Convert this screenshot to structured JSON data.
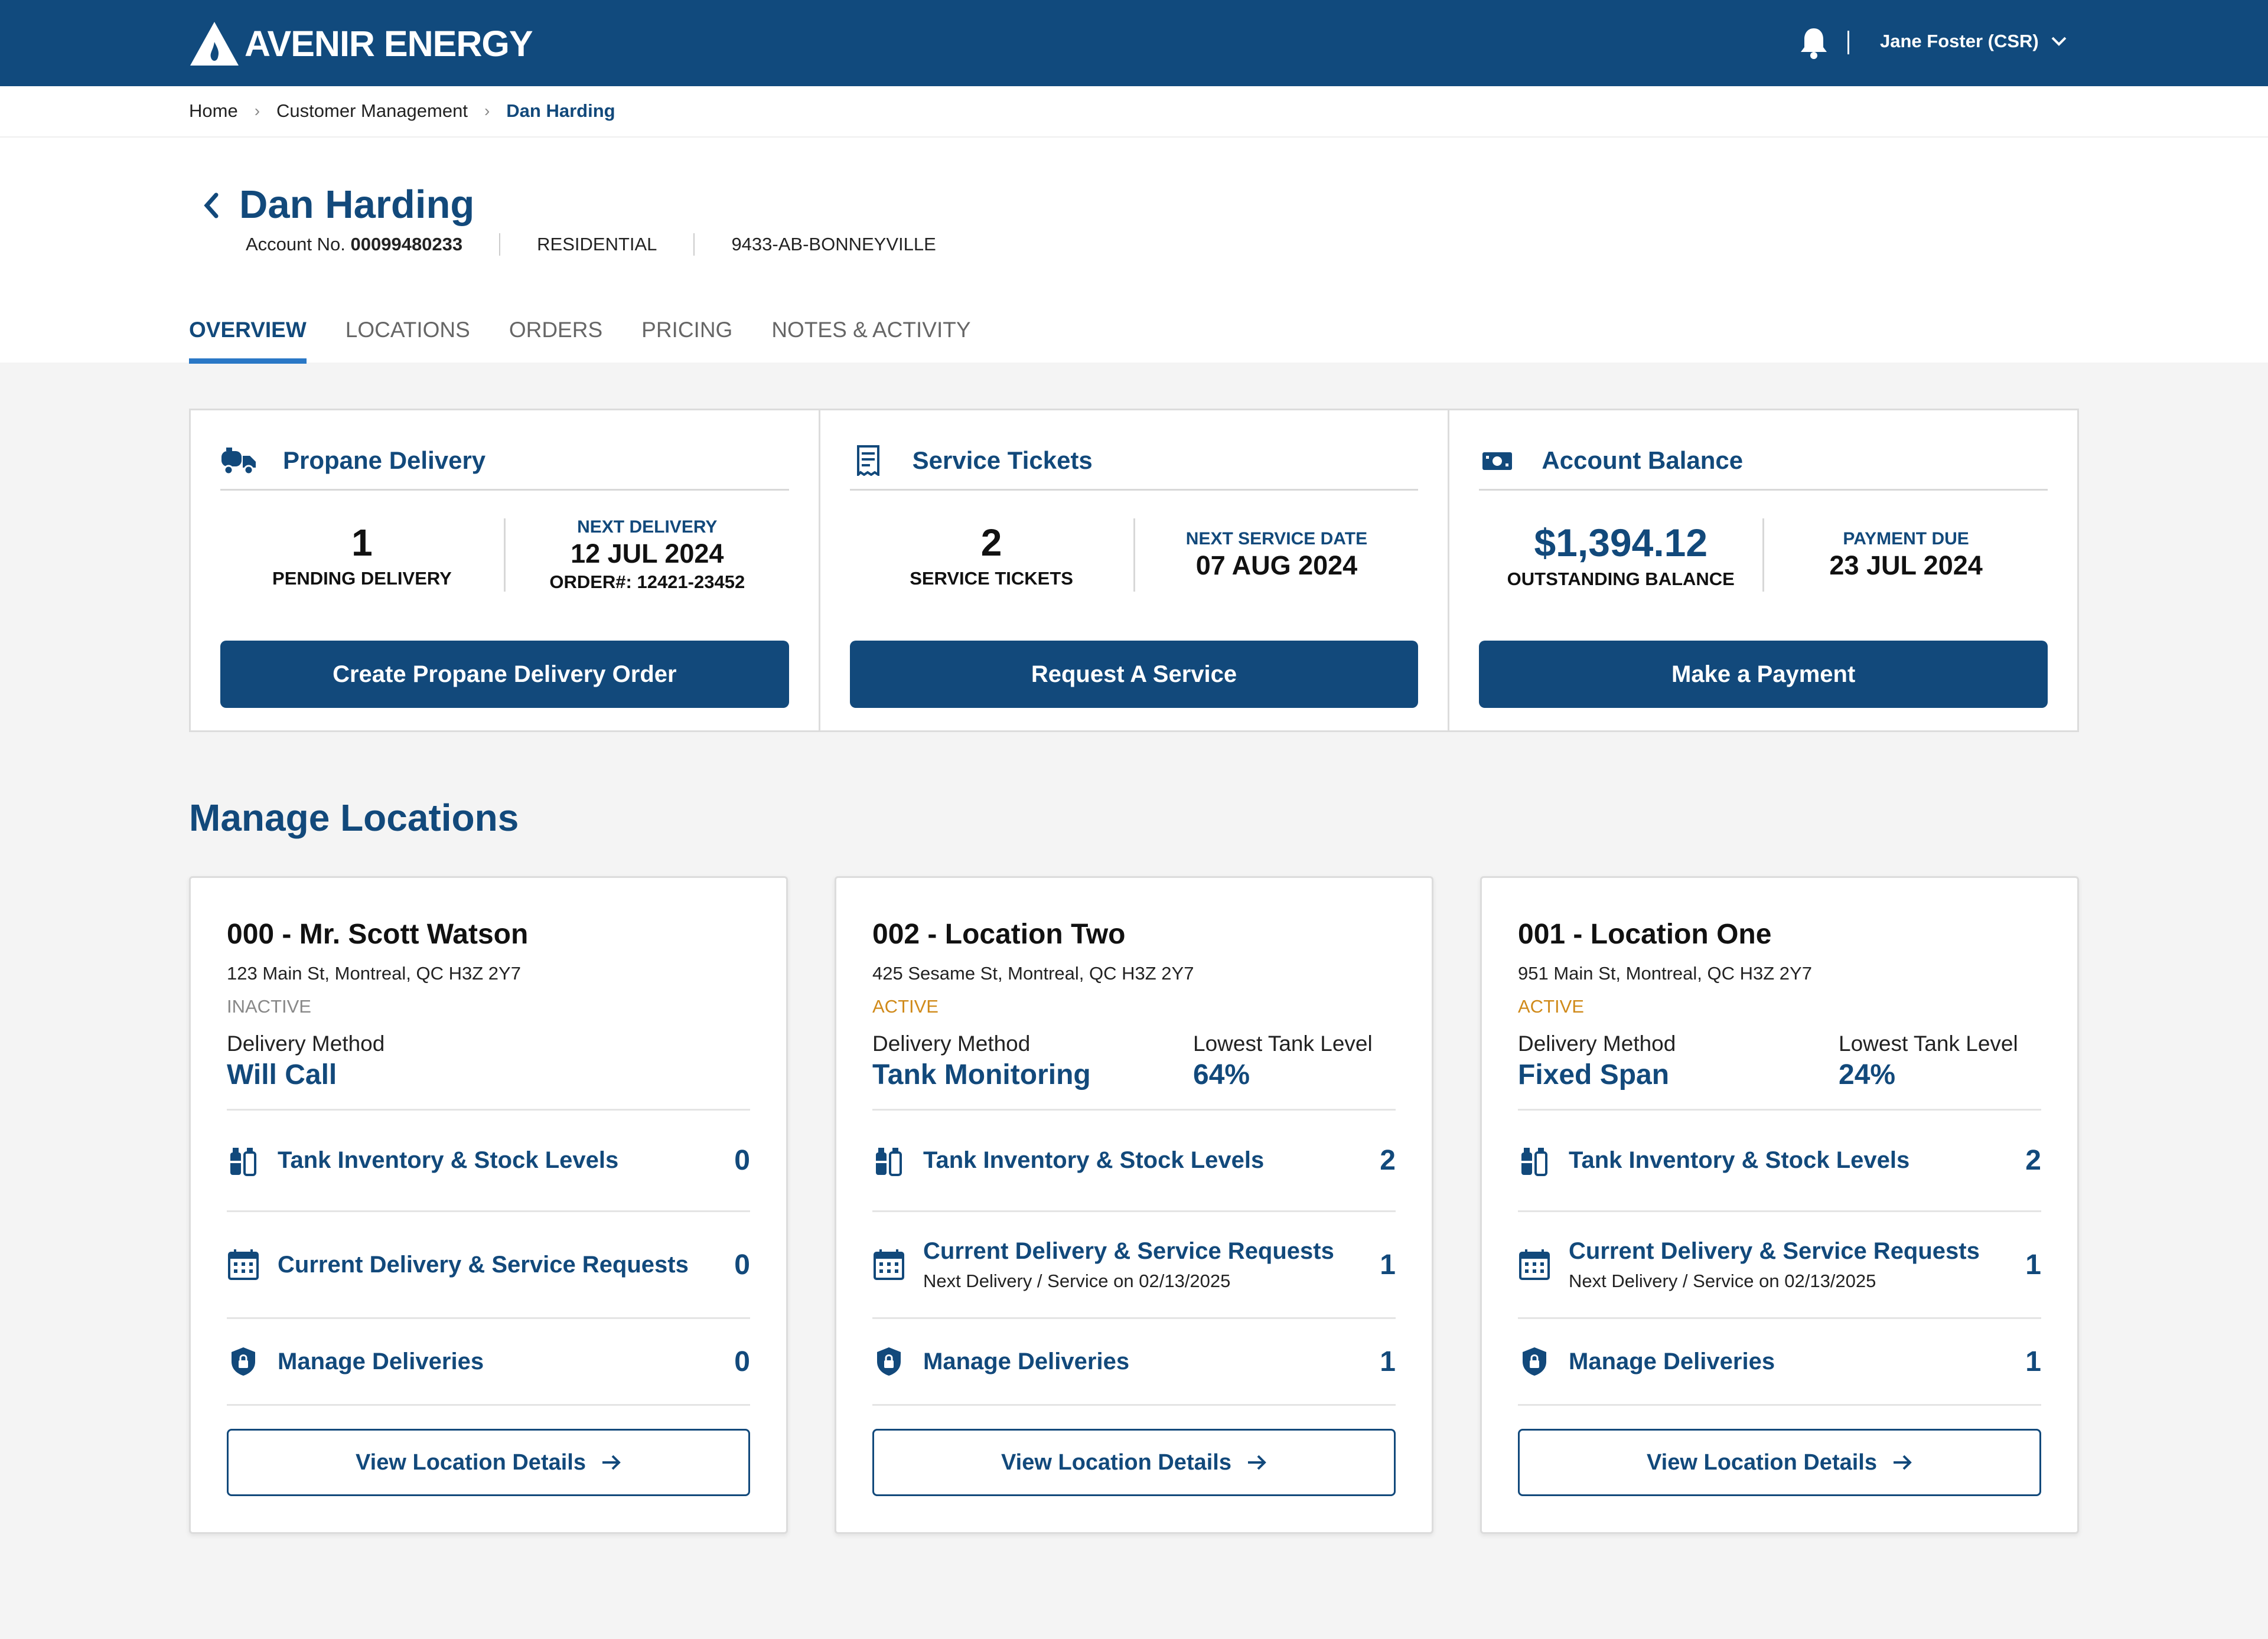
{
  "header": {
    "brand": "AVENIR ENERGY",
    "user": "Jane Foster (CSR)"
  },
  "breadcrumb": [
    "Home",
    "Customer Management",
    "Dan Harding"
  ],
  "customer": {
    "name": "Dan Harding",
    "account_label": "Account No.",
    "account_no": "00099480233",
    "type": "RESIDENTIAL",
    "region": "9433-AB-BONNEYVILLE"
  },
  "tabs": [
    "OVERVIEW",
    "LOCATIONS",
    "ORDERS",
    "PRICING",
    "NOTES & ACTIVITY"
  ],
  "summary": {
    "propane": {
      "title": "Propane Delivery",
      "count": "1",
      "count_label": "PENDING DELIVERY",
      "next_label": "NEXT DELIVERY",
      "next_date": "12 JUL 2024",
      "order": "ORDER#: 12421-23452",
      "button": "Create Propane Delivery Order"
    },
    "service": {
      "title": "Service Tickets",
      "count": "2",
      "count_label": "SERVICE TICKETS",
      "next_label": "NEXT SERVICE DATE",
      "next_date": "07 AUG 2024",
      "button": "Request A Service"
    },
    "balance": {
      "title": "Account Balance",
      "amount": "$1,394.12",
      "amount_label": "OUTSTANDING BALANCE",
      "due_label": "PAYMENT DUE",
      "due_date": "23 JUL 2024",
      "button": "Make a Payment"
    }
  },
  "manage_title": "Manage Locations",
  "locations": [
    {
      "name": "000 - Mr. Scott Watson",
      "address": "123 Main St, Montreal, QC H3Z 2Y7",
      "status": "INACTIVE",
      "dm_label": "Delivery Method",
      "dm_value": "Will Call",
      "tl_label": "",
      "tl_value": "",
      "rows": [
        {
          "label": "Tank Inventory & Stock Levels",
          "sub": "",
          "count": "0"
        },
        {
          "label": "Current Delivery & Service Requests",
          "sub": "",
          "count": "0"
        },
        {
          "label": "Manage Deliveries",
          "sub": "",
          "count": "0"
        }
      ],
      "button": "View Location Details"
    },
    {
      "name": "002 - Location Two",
      "address": "425 Sesame St, Montreal, QC H3Z 2Y7",
      "status": "ACTIVE",
      "dm_label": "Delivery Method",
      "dm_value": "Tank Monitoring",
      "tl_label": "Lowest Tank Level",
      "tl_value": "64%",
      "rows": [
        {
          "label": "Tank Inventory & Stock Levels",
          "sub": "",
          "count": "2"
        },
        {
          "label": "Current Delivery & Service Requests",
          "sub": "Next Delivery / Service on 02/13/2025",
          "count": "1"
        },
        {
          "label": "Manage Deliveries",
          "sub": "",
          "count": "1"
        }
      ],
      "button": "View Location Details"
    },
    {
      "name": "001 - Location One",
      "address": "951 Main St, Montreal, QC H3Z 2Y7",
      "status": "ACTIVE",
      "dm_label": "Delivery Method",
      "dm_value": "Fixed Span",
      "tl_label": "Lowest Tank Level",
      "tl_value": "24%",
      "rows": [
        {
          "label": "Tank Inventory & Stock Levels",
          "sub": "",
          "count": "2"
        },
        {
          "label": "Current Delivery & Service Requests",
          "sub": "Next Delivery / Service on 02/13/2025",
          "count": "1"
        },
        {
          "label": "Manage Deliveries",
          "sub": "",
          "count": "1"
        }
      ],
      "button": "View Location Details"
    }
  ]
}
